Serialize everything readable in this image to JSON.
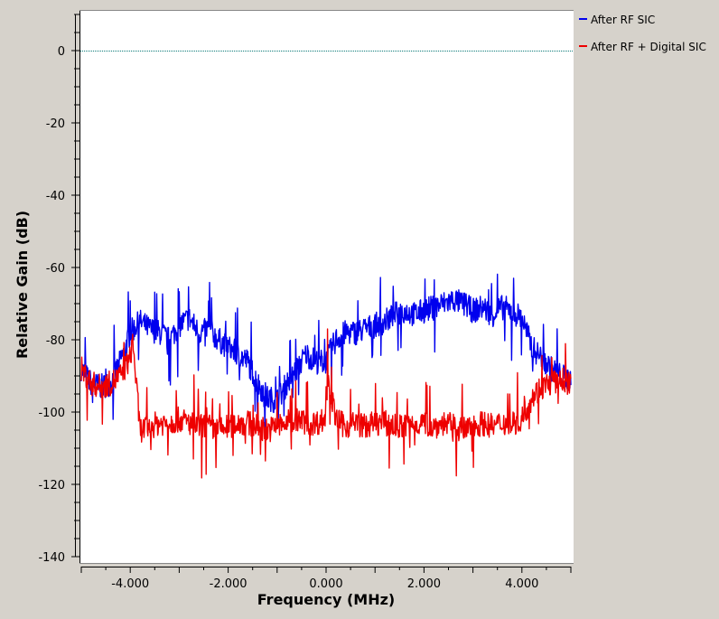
{
  "chart_data": {
    "type": "line",
    "xlabel": "Frequency (MHz)",
    "ylabel": "Relative Gain (dB)",
    "xlim": [
      -5.0,
      5.0
    ],
    "ylim": [
      -140,
      10
    ],
    "x_ticks": [
      -4.0,
      -2.0,
      0.0,
      2.0,
      4.0
    ],
    "x_tick_labels": [
      "-4.000",
      "-2.000",
      "0.000",
      "2.000",
      "4.000"
    ],
    "y_ticks": [
      0,
      -20,
      -40,
      -60,
      -80,
      -100,
      -120,
      -140
    ],
    "y_tick_labels": [
      "0",
      "-20",
      "-40",
      "-60",
      "-80",
      "-100",
      "-120",
      "-140"
    ],
    "reference_line": {
      "y": 0,
      "color": "#0b7a78",
      "style": "dotted"
    },
    "legend_placement": "top-right (outside plot)",
    "grid": false,
    "series": [
      {
        "name": "After RF SIC",
        "color": "#0000ee",
        "x": [
          -5.0,
          -4.8,
          -4.6,
          -4.4,
          -4.2,
          -4.0,
          -3.8,
          -3.6,
          -3.4,
          -3.2,
          -3.0,
          -2.8,
          -2.6,
          -2.4,
          -2.2,
          -2.0,
          -1.8,
          -1.6,
          -1.4,
          -1.2,
          -1.0,
          -0.8,
          -0.6,
          -0.4,
          -0.2,
          0.0,
          0.2,
          0.4,
          0.6,
          0.8,
          1.0,
          1.2,
          1.4,
          1.6,
          1.8,
          2.0,
          2.2,
          2.4,
          2.6,
          2.8,
          3.0,
          3.2,
          3.4,
          3.6,
          3.8,
          4.0,
          4.2,
          4.4,
          4.6,
          4.8,
          5.0
        ],
        "y": [
          -88,
          -92,
          -93,
          -92,
          -86,
          -78,
          -75,
          -77,
          -78,
          -80,
          -76,
          -74,
          -78,
          -77,
          -80,
          -82,
          -84,
          -86,
          -92,
          -96,
          -97,
          -92,
          -88,
          -84,
          -86,
          -86,
          -80,
          -78,
          -78,
          -77,
          -76,
          -75,
          -73,
          -72,
          -73,
          -72,
          -71,
          -70,
          -69,
          -70,
          -72,
          -71,
          -73,
          -71,
          -72,
          -74,
          -82,
          -85,
          -88,
          -90,
          -91
        ]
      },
      {
        "name": "After RF + Digital SIC",
        "color": "#ee0000",
        "x": [
          -5.0,
          -4.8,
          -4.6,
          -4.4,
          -4.2,
          -4.0,
          -3.95,
          -3.8,
          -3.6,
          -3.4,
          -3.2,
          -3.0,
          -2.8,
          -2.6,
          -2.4,
          -2.2,
          -2.0,
          -1.8,
          -1.6,
          -1.4,
          -1.2,
          -1.0,
          -0.8,
          -0.6,
          -0.4,
          -0.2,
          -0.02,
          0.02,
          0.1,
          0.2,
          0.4,
          0.6,
          0.8,
          1.0,
          1.2,
          1.4,
          1.6,
          1.8,
          2.0,
          2.2,
          2.4,
          2.6,
          2.8,
          3.0,
          3.2,
          3.4,
          3.6,
          3.8,
          4.0,
          4.2,
          4.4,
          4.6,
          4.8,
          5.0
        ],
        "y": [
          -88,
          -92,
          -93,
          -92,
          -90,
          -85,
          -80,
          -105,
          -104,
          -103,
          -103,
          -102,
          -103,
          -104,
          -104,
          -105,
          -104,
          -103,
          -103,
          -104,
          -105,
          -104,
          -103,
          -102,
          -103,
          -103,
          -102,
          -88,
          -95,
          -102,
          -104,
          -103,
          -104,
          -103,
          -103,
          -104,
          -104,
          -103,
          -103,
          -104,
          -103,
          -104,
          -105,
          -104,
          -103,
          -104,
          -103,
          -103,
          -102,
          -96,
          -93,
          -92,
          -91,
          -92
        ]
      }
    ]
  }
}
